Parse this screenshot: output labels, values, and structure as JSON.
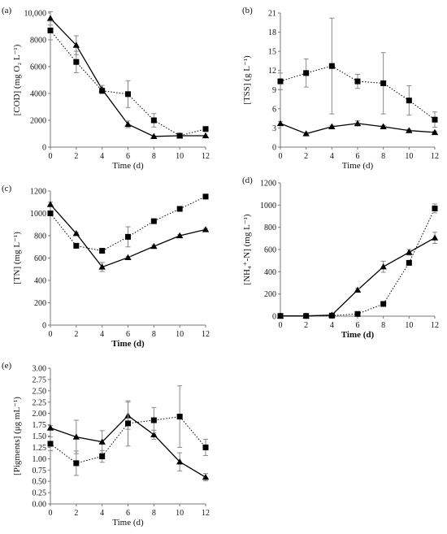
{
  "chart_data": [
    {
      "panel_label": "(a)",
      "type": "line",
      "xlabel": "Time (d)",
      "ylabel": "[COD] (mg O₂ L⁻¹)",
      "x": [
        0,
        2,
        4,
        6,
        8,
        10,
        12
      ],
      "xlim": [
        0,
        12
      ],
      "xticks": [
        0,
        2,
        4,
        6,
        8,
        10,
        12
      ],
      "ylim": [
        0,
        10000
      ],
      "yticks": [
        0,
        2000,
        4000,
        6000,
        8000,
        10000
      ],
      "ytick_labels": [
        "0",
        "2000",
        "4000",
        "6000",
        "8000",
        "10,000"
      ],
      "series": [
        {
          "marker": "triangle",
          "style": "solid",
          "values": [
            9600,
            7600,
            4300,
            1700,
            800,
            850,
            850
          ],
          "errors": [
            500,
            700,
            300,
            250,
            0,
            0,
            0
          ]
        },
        {
          "marker": "square",
          "style": "dotted",
          "values": [
            8700,
            6350,
            4200,
            3950,
            2000,
            850,
            1350
          ],
          "errors": [
            700,
            800,
            200,
            1000,
            500,
            0,
            0
          ]
        }
      ]
    },
    {
      "panel_label": "(b)",
      "type": "line",
      "xlabel": "Time (d)",
      "ylabel": "[TSS] (g L⁻¹)",
      "x": [
        0,
        2,
        4,
        6,
        8,
        10,
        12
      ],
      "xlim": [
        0,
        12
      ],
      "xticks": [
        0,
        2,
        4,
        6,
        8,
        10,
        12
      ],
      "ylim": [
        0,
        21
      ],
      "yticks": [
        0,
        3,
        6,
        9,
        12,
        15,
        18,
        21
      ],
      "ytick_labels": [
        "0",
        "3",
        "6",
        "9",
        "12",
        "15",
        "18",
        "21"
      ],
      "series": [
        {
          "marker": "triangle",
          "style": "solid",
          "values": [
            3.7,
            2.1,
            3.2,
            3.7,
            3.2,
            2.6,
            2.3
          ],
          "errors": [
            0.3,
            0.2,
            0.2,
            0.4,
            0.2,
            0.2,
            0.2
          ]
        },
        {
          "marker": "square",
          "style": "dotted",
          "values": [
            10.3,
            11.6,
            12.7,
            10.3,
            10.0,
            7.3,
            4.3
          ],
          "errors": [
            1.3,
            2.2,
            7.5,
            1.1,
            4.8,
            2.3,
            1.2
          ]
        }
      ]
    },
    {
      "panel_label": "(c)",
      "type": "line",
      "xlabel": "Time (d)",
      "ylabel": "[TN] (mg L⁻¹)",
      "x": [
        0,
        2,
        4,
        6,
        8,
        10,
        12
      ],
      "xlim": [
        0,
        12
      ],
      "xticks": [
        0,
        2,
        4,
        6,
        8,
        10,
        12
      ],
      "ylim": [
        0,
        1200
      ],
      "yticks": [
        0,
        200,
        400,
        600,
        800,
        1000,
        1200
      ],
      "ytick_labels": [
        "0",
        "200",
        "400",
        "600",
        "800",
        "1000",
        "1200"
      ],
      "series": [
        {
          "marker": "triangle",
          "style": "solid",
          "values": [
            1080,
            820,
            520,
            605,
            705,
            800,
            855
          ],
          "errors": [
            20,
            10,
            40,
            10,
            10,
            10,
            10
          ]
        },
        {
          "marker": "square",
          "style": "dotted",
          "values": [
            1000,
            710,
            665,
            790,
            930,
            1040,
            1150
          ],
          "errors": [
            20,
            10,
            10,
            90,
            10,
            10,
            10
          ]
        }
      ]
    },
    {
      "panel_label": "(d)",
      "type": "line",
      "xlabel": "Time (d)",
      "ylabel": "[NH₄⁺-N] (mg L⁻¹)",
      "x": [
        0,
        2,
        4,
        6,
        8,
        10,
        12
      ],
      "xlim": [
        0,
        12
      ],
      "xticks": [
        0,
        2,
        4,
        6,
        8,
        10,
        12
      ],
      "ylim": [
        0,
        1200
      ],
      "yticks": [
        0,
        200,
        400,
        600,
        800,
        1000,
        1200
      ],
      "ytick_labels": [
        "0",
        "200",
        "400",
        "600",
        "800",
        "1000",
        "1200"
      ],
      "series": [
        {
          "marker": "triangle",
          "style": "solid",
          "values": [
            2,
            2,
            10,
            235,
            445,
            575,
            705
          ],
          "errors": [
            0,
            0,
            0,
            15,
            50,
            25,
            50
          ]
        },
        {
          "marker": "square",
          "style": "dotted",
          "values": [
            2,
            2,
            5,
            20,
            110,
            480,
            970
          ],
          "errors": [
            0,
            0,
            0,
            0,
            10,
            10,
            40
          ]
        }
      ]
    },
    {
      "panel_label": "(e)",
      "type": "line",
      "xlabel": "Time (d)",
      "ylabel": "[Pigments] (μg mL⁻¹)",
      "x": [
        0,
        2,
        4,
        6,
        8,
        10,
        12
      ],
      "xlim": [
        0,
        12
      ],
      "xticks": [
        0,
        2,
        4,
        6,
        8,
        10,
        12
      ],
      "ylim": [
        0,
        3
      ],
      "yticks": [
        0,
        0.25,
        0.5,
        0.75,
        1.0,
        1.25,
        1.5,
        1.75,
        2.0,
        2.25,
        2.5,
        2.75,
        3.0
      ],
      "ytick_labels": [
        "0.00",
        "0.25",
        "0.50",
        "0.75",
        "1.00",
        "1.25",
        "1.50",
        "1.75",
        "2.00",
        "2.25",
        "2.50",
        "2.75",
        "3.00"
      ],
      "series": [
        {
          "marker": "triangle",
          "style": "solid",
          "values": [
            1.68,
            1.48,
            1.37,
            1.95,
            1.53,
            0.93,
            0.59
          ],
          "errors": [
            0.05,
            0.37,
            0.25,
            0.3,
            0.1,
            0.2,
            0.08
          ]
        },
        {
          "marker": "square",
          "style": "dotted",
          "values": [
            1.33,
            0.9,
            1.05,
            1.78,
            1.85,
            1.93,
            1.25
          ],
          "errors": [
            0.15,
            0.27,
            0.13,
            0.5,
            0.28,
            0.68,
            0.18
          ]
        }
      ]
    }
  ]
}
